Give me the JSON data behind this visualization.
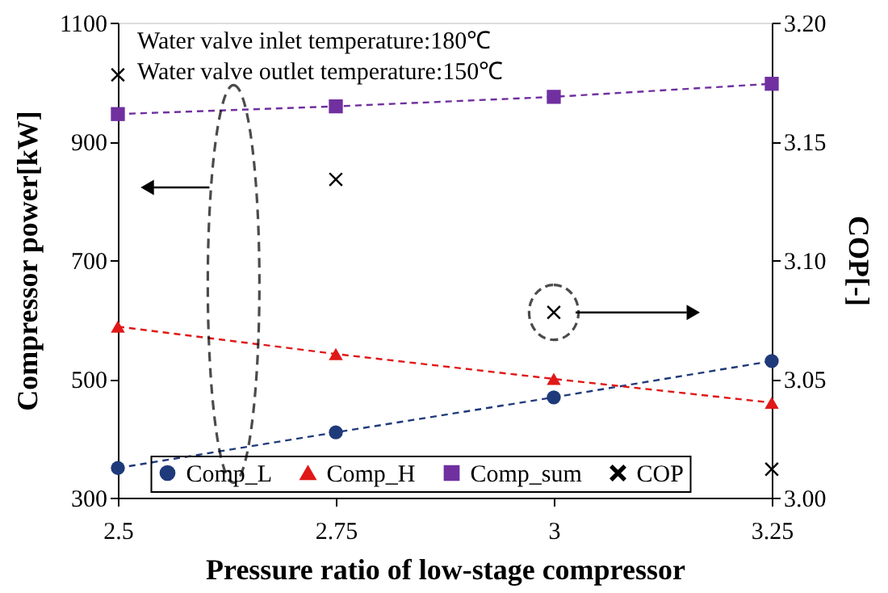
{
  "chart_data": {
    "type": "line",
    "xlabel": "Pressure ratio of low-stage compressor",
    "ylabel": "Compressor power[kW]",
    "y2label": "COP[-]",
    "x": [
      2.5,
      2.75,
      3,
      3.25
    ],
    "xlim": [
      2.5,
      3.25
    ],
    "xticks": [
      2.5,
      2.75,
      3,
      3.25
    ],
    "ylim": [
      300,
      1100
    ],
    "yticks": [
      300,
      500,
      700,
      900,
      1100
    ],
    "y2lim": [
      3.0,
      3.2
    ],
    "y2ticks": [
      {
        "value": 3.0,
        "label": "3.00"
      },
      {
        "value": 3.05,
        "label": "3.05"
      },
      {
        "value": 3.1,
        "label": "3.10"
      },
      {
        "value": 3.15,
        "label": "3.15"
      },
      {
        "value": 3.2,
        "label": "3.20"
      }
    ],
    "series": [
      {
        "name": "Comp_L",
        "color": "#1f3a7a",
        "values": [
          350,
          410,
          469,
          530
        ],
        "marker": "circle",
        "line_style": "dashed"
      },
      {
        "name": "Comp_H",
        "color": "#e01818",
        "values": [
          588,
          542,
          500,
          460
        ],
        "marker": "triangle",
        "line_style": "dashed"
      },
      {
        "name": "Comp_sum",
        "color": "#7030a0",
        "values": [
          946,
          959,
          975,
          997
        ],
        "marker": "square",
        "line_style": "dashed"
      },
      {
        "name": "COP",
        "type": "scatter",
        "axis": "y2",
        "color": "#000000",
        "values": [
          3.178,
          3.134,
          3.078,
          3.012
        ],
        "marker": "cross",
        "line_style": "none"
      }
    ],
    "annotations": [
      "Water valve inlet temperature:180℃",
      "Water valve outlet temperature:150℃"
    ],
    "legend": "bottom",
    "grid": false
  }
}
